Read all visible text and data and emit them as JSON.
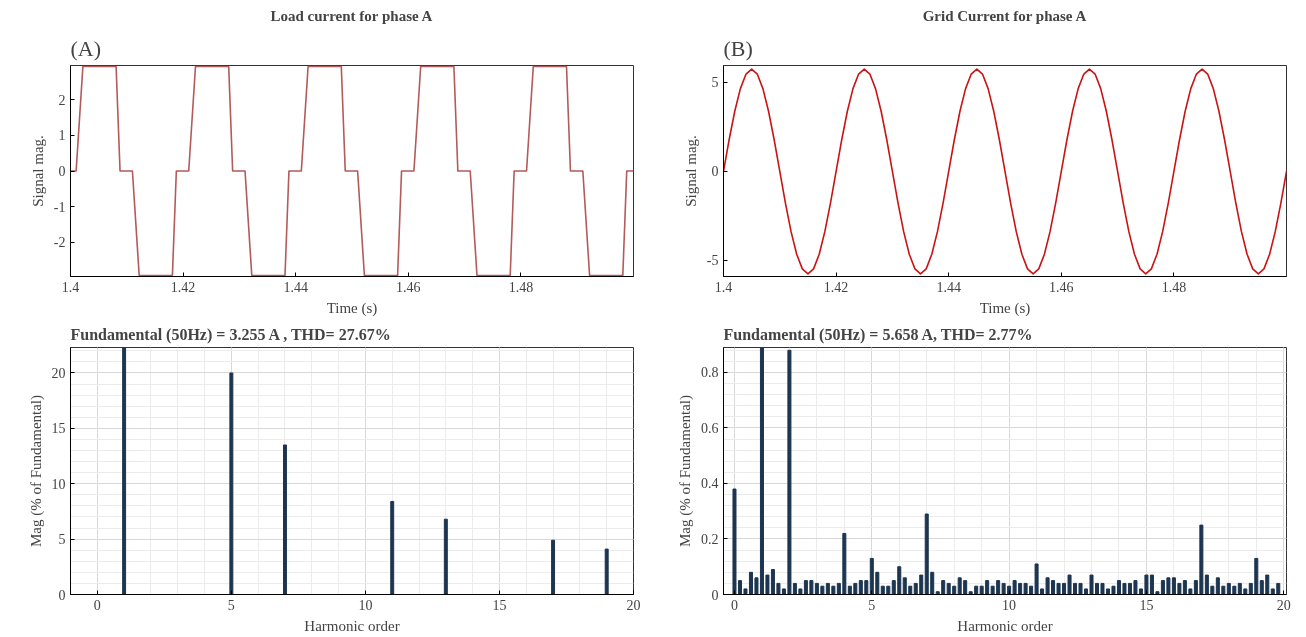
{
  "chart_data": [
    {
      "type": "line",
      "title": "Load current for phase A",
      "xlabel": "Time (s)",
      "ylabel": "Signal mag.",
      "annotations": [
        "(A)"
      ],
      "color": "#b35a5a",
      "x": [
        1.4,
        1.401,
        1.4022,
        1.4081,
        1.4088,
        1.411,
        1.4122,
        1.4181,
        1.4188,
        1.42,
        1.421,
        1.4222,
        1.4281,
        1.4288,
        1.431,
        1.4322,
        1.4381,
        1.4388,
        1.44,
        1.441,
        1.4422,
        1.4481,
        1.4488,
        1.451,
        1.4522,
        1.4581,
        1.4588,
        1.46,
        1.461,
        1.4622,
        1.4681,
        1.4688,
        1.471,
        1.4722,
        1.4781,
        1.4788,
        1.48,
        1.481,
        1.4822,
        1.4881,
        1.4888,
        1.491,
        1.4922,
        1.4981,
        1.4988,
        1.5
      ],
      "values": [
        0,
        0,
        2.93,
        2.93,
        0,
        0,
        -2.93,
        -2.93,
        0,
        0,
        0,
        2.93,
        2.93,
        0,
        0,
        -2.93,
        -2.93,
        0,
        0,
        0,
        2.93,
        2.93,
        0,
        0,
        -2.93,
        -2.93,
        0,
        0,
        0,
        2.93,
        2.93,
        0,
        0,
        -2.93,
        -2.93,
        0,
        0,
        0,
        2.93,
        2.93,
        0,
        0,
        -2.93,
        -2.93,
        0,
        0
      ],
      "xlim": [
        1.4,
        1.5
      ],
      "ylim": [
        -2.96,
        2.96
      ],
      "xticks": [
        1.4,
        1.42,
        1.44,
        1.46,
        1.48
      ],
      "yticks": [
        -2,
        -1,
        0,
        1,
        2
      ],
      "grid": false
    },
    {
      "type": "line",
      "title": "Grid Current for phase A",
      "xlabel": "Time (s)",
      "ylabel": "Signal mag.",
      "annotations": [
        "(B)"
      ],
      "color": "#c81414",
      "x": [
        1.4,
        1.401,
        1.402,
        1.403,
        1.404,
        1.405,
        1.406,
        1.407,
        1.408,
        1.409,
        1.41,
        1.411,
        1.412,
        1.413,
        1.414,
        1.415,
        1.416,
        1.417,
        1.418,
        1.419,
        1.42,
        1.421,
        1.422,
        1.423,
        1.424,
        1.425,
        1.426,
        1.427,
        1.428,
        1.429,
        1.43,
        1.431,
        1.432,
        1.433,
        1.434,
        1.435,
        1.436,
        1.437,
        1.438,
        1.439,
        1.44,
        1.441,
        1.442,
        1.443,
        1.444,
        1.445,
        1.446,
        1.447,
        1.448,
        1.449,
        1.45,
        1.451,
        1.452,
        1.453,
        1.454,
        1.455,
        1.456,
        1.457,
        1.458,
        1.459,
        1.46,
        1.461,
        1.462,
        1.463,
        1.464,
        1.465,
        1.466,
        1.467,
        1.468,
        1.469,
        1.47,
        1.471,
        1.472,
        1.473,
        1.474,
        1.475,
        1.476,
        1.477,
        1.478,
        1.479,
        1.48,
        1.481,
        1.482,
        1.483,
        1.484,
        1.485,
        1.486,
        1.487,
        1.488,
        1.489,
        1.49,
        1.491,
        1.492,
        1.493,
        1.494,
        1.495,
        1.496,
        1.497,
        1.498,
        1.499,
        1.5
      ],
      "values": [
        0,
        1.78,
        3.38,
        4.65,
        5.47,
        5.75,
        5.47,
        4.65,
        3.38,
        1.78,
        0,
        -1.78,
        -3.38,
        -4.65,
        -5.47,
        -5.75,
        -5.47,
        -4.65,
        -3.38,
        -1.78,
        0,
        1.78,
        3.38,
        4.65,
        5.47,
        5.75,
        5.47,
        4.65,
        3.38,
        1.78,
        0,
        -1.78,
        -3.38,
        -4.65,
        -5.47,
        -5.75,
        -5.47,
        -4.65,
        -3.38,
        -1.78,
        0,
        1.78,
        3.38,
        4.65,
        5.47,
        5.75,
        5.47,
        4.65,
        3.38,
        1.78,
        0,
        -1.78,
        -3.38,
        -4.65,
        -5.47,
        -5.75,
        -5.47,
        -4.65,
        -3.38,
        -1.78,
        0,
        1.78,
        3.38,
        4.65,
        5.47,
        5.75,
        5.47,
        4.65,
        3.38,
        1.78,
        0,
        -1.78,
        -3.38,
        -4.65,
        -5.47,
        -5.75,
        -5.47,
        -4.65,
        -3.38,
        -1.78,
        0,
        1.78,
        3.38,
        4.65,
        5.47,
        5.75,
        5.47,
        4.65,
        3.38,
        1.78,
        0,
        -1.78,
        -3.38,
        -4.65,
        -5.47,
        -5.75,
        -5.47,
        -4.65,
        -3.38,
        -1.78,
        0
      ],
      "xlim": [
        1.4,
        1.5
      ],
      "ylim": [
        -5.9,
        5.95
      ],
      "xticks": [
        1.4,
        1.42,
        1.44,
        1.46,
        1.48
      ],
      "yticks": [
        -5,
        0,
        5
      ],
      "grid": false
    },
    {
      "type": "bar",
      "xlabel": "Harmonic order",
      "ylabel": "Mag (% of Fundamental)",
      "annotations": [
        "Fundamental (50Hz) = 3.255 A , THD= 27.67%"
      ],
      "color": "#1c3550",
      "x": [
        1,
        5,
        7,
        11,
        13,
        17,
        19
      ],
      "values": [
        22.3,
        20.0,
        13.5,
        8.4,
        6.8,
        4.9,
        4.1
      ],
      "xlim": [
        -1,
        20
      ],
      "ylim": [
        0,
        22.3
      ],
      "xticks": [
        0,
        5,
        10,
        15,
        20
      ],
      "yticks": [
        0,
        5,
        10,
        15,
        20
      ],
      "grid": true
    },
    {
      "type": "bar",
      "xlabel": "Harmonic order",
      "ylabel": "Mag (% of Fundamental)",
      "annotations": [
        "Fundamental (50Hz) = 5.658 A, THD= 2.77%"
      ],
      "color": "#1c3550",
      "x": [
        0,
        0.2,
        0.4,
        0.6,
        0.8,
        1,
        1.2,
        1.4,
        1.6,
        1.8,
        2,
        2.2,
        2.4,
        2.6,
        2.8,
        3,
        3.2,
        3.4,
        3.6,
        3.8,
        4,
        4.2,
        4.4,
        4.6,
        4.8,
        5,
        5.2,
        5.4,
        5.6,
        5.8,
        6,
        6.2,
        6.4,
        6.6,
        6.8,
        7,
        7.2,
        7.4,
        7.6,
        7.8,
        8,
        8.2,
        8.4,
        8.6,
        8.8,
        9,
        9.2,
        9.4,
        9.6,
        9.8,
        10,
        10.2,
        10.4,
        10.6,
        10.8,
        11,
        11.2,
        11.4,
        11.6,
        11.8,
        12,
        12.2,
        12.4,
        12.6,
        12.8,
        13,
        13.2,
        13.4,
        13.6,
        13.8,
        14,
        14.2,
        14.4,
        14.6,
        14.8,
        15,
        15.2,
        15.4,
        15.6,
        15.8,
        16,
        16.2,
        16.4,
        16.6,
        16.8,
        17,
        17.2,
        17.4,
        17.6,
        17.8,
        18,
        18.2,
        18.4,
        18.6,
        18.8,
        19,
        19.2,
        19.4,
        19.6,
        19.8
      ],
      "values": [
        0.38,
        0.05,
        0.02,
        0.08,
        0.06,
        0.89,
        0.07,
        0.09,
        0.04,
        0.02,
        0.88,
        0.04,
        0.02,
        0.05,
        0.05,
        0.04,
        0.03,
        0.04,
        0.03,
        0.04,
        0.22,
        0.03,
        0.04,
        0.05,
        0.05,
        0.13,
        0.08,
        0.03,
        0.03,
        0.05,
        0.1,
        0.06,
        0.03,
        0.04,
        0.07,
        0.29,
        0.08,
        0.01,
        0.05,
        0.04,
        0.03,
        0.06,
        0.05,
        0.01,
        0.03,
        0.03,
        0.05,
        0.03,
        0.05,
        0.04,
        0.03,
        0.05,
        0.04,
        0.04,
        0.03,
        0.11,
        0.02,
        0.06,
        0.05,
        0.04,
        0.04,
        0.07,
        0.04,
        0.04,
        0.02,
        0.07,
        0.04,
        0.04,
        0.02,
        0.03,
        0.05,
        0.04,
        0.04,
        0.05,
        0.02,
        0.07,
        0.07,
        0.01,
        0.05,
        0.06,
        0.06,
        0.04,
        0.05,
        0.02,
        0.05,
        0.25,
        0.07,
        0.03,
        0.06,
        0.03,
        0.04,
        0.03,
        0.04,
        0.02,
        0.04,
        0.13,
        0.05,
        0.07,
        0.02,
        0.04
      ],
      "xlim": [
        -0.4,
        20.1
      ],
      "ylim": [
        0,
        0.89
      ],
      "xticks": [
        0,
        5,
        10,
        15,
        20
      ],
      "yticks": [
        0,
        0.2,
        0.4,
        0.6,
        0.8
      ],
      "grid": true
    }
  ]
}
